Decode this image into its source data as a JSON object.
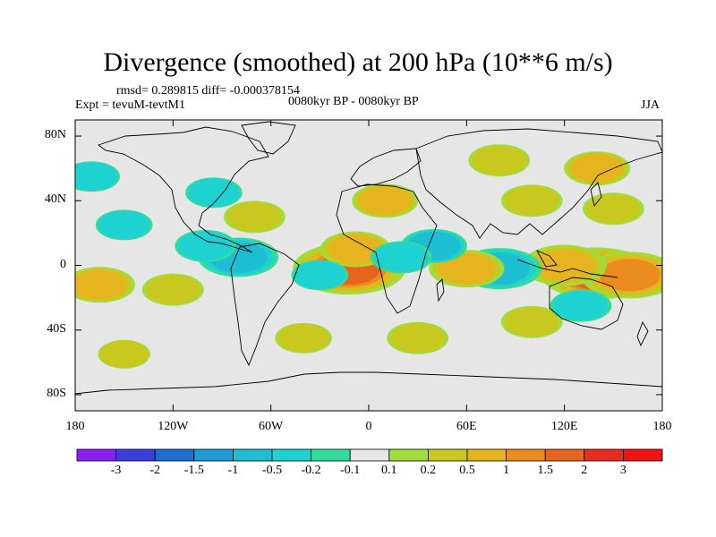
{
  "chart_data": {
    "type": "heatmap",
    "title": "Divergence (smoothed) at 200 hPa (10**6 m/s)",
    "stats_line": "rmsd= 0.289815 diff= -0.000378154",
    "experiment": "Expt = tevuM-tevtM1",
    "period": "0080kyr BP - 0080kyr BP",
    "season": "JJA",
    "x_ticks": [
      "180",
      "120W",
      "60W",
      "0",
      "60E",
      "120E",
      "180"
    ],
    "y_ticks": [
      "80N",
      "40N",
      "0",
      "40S",
      "80S"
    ],
    "xlim": [
      -180,
      180
    ],
    "ylim": [
      -90,
      90
    ],
    "colorbar": {
      "labels": [
        "-3",
        "-2",
        "-1.5",
        "-1",
        "-0.5",
        "-0.2",
        "-0.1",
        "0.1",
        "0.2",
        "0.5",
        "1",
        "1.5",
        "2",
        "3"
      ],
      "colors": [
        "#8b1ef0",
        "#3c3cdc",
        "#1e6ed2",
        "#1e9bd7",
        "#1ebed2",
        "#1ed2d2",
        "#32dc9b",
        "#e6e6e6",
        "#a0dc3c",
        "#c8c81e",
        "#e6b41e",
        "#eb8c1e",
        "#e6641e",
        "#e62d1e",
        "#f01414"
      ]
    },
    "anomalies": [
      {
        "lon": -12,
        "lat": -2,
        "value": 1.6
      },
      {
        "lon": -8,
        "lat": 10,
        "value": 0.6
      },
      {
        "lon": -30,
        "lat": -6,
        "value": -0.3
      },
      {
        "lon": 140,
        "lat": -5,
        "value": 1.7
      },
      {
        "lon": 160,
        "lat": -6,
        "value": 1.2
      },
      {
        "lon": 120,
        "lat": 0,
        "value": 0.9
      },
      {
        "lon": 80,
        "lat": -2,
        "value": -0.9
      },
      {
        "lon": 60,
        "lat": -2,
        "value": 0.7
      },
      {
        "lon": 40,
        "lat": 12,
        "value": -0.5
      },
      {
        "lon": 20,
        "lat": 5,
        "value": -0.4
      },
      {
        "lon": -80,
        "lat": 5,
        "value": -0.8
      },
      {
        "lon": -100,
        "lat": 12,
        "value": -0.4
      },
      {
        "lon": -150,
        "lat": 25,
        "value": -0.3
      },
      {
        "lon": -165,
        "lat": -12,
        "value": 0.6
      },
      {
        "lon": -120,
        "lat": -15,
        "value": 0.4
      },
      {
        "lon": -70,
        "lat": 30,
        "value": 0.4
      },
      {
        "lon": -95,
        "lat": 45,
        "value": -0.3
      },
      {
        "lon": 10,
        "lat": 40,
        "value": 0.5
      },
      {
        "lon": 30,
        "lat": -45,
        "value": 0.4
      },
      {
        "lon": 100,
        "lat": -35,
        "value": 0.4
      },
      {
        "lon": 130,
        "lat": -25,
        "value": -0.4
      },
      {
        "lon": 150,
        "lat": 35,
        "value": 0.4
      },
      {
        "lon": 140,
        "lat": 60,
        "value": 0.5
      },
      {
        "lon": 80,
        "lat": 65,
        "value": 0.4
      },
      {
        "lon": -40,
        "lat": -45,
        "value": 0.3
      },
      {
        "lon": -150,
        "lat": -55,
        "value": 0.2
      },
      {
        "lon": 100,
        "lat": 40,
        "value": 0.4
      },
      {
        "lon": -170,
        "lat": 55,
        "value": -0.3
      }
    ]
  }
}
